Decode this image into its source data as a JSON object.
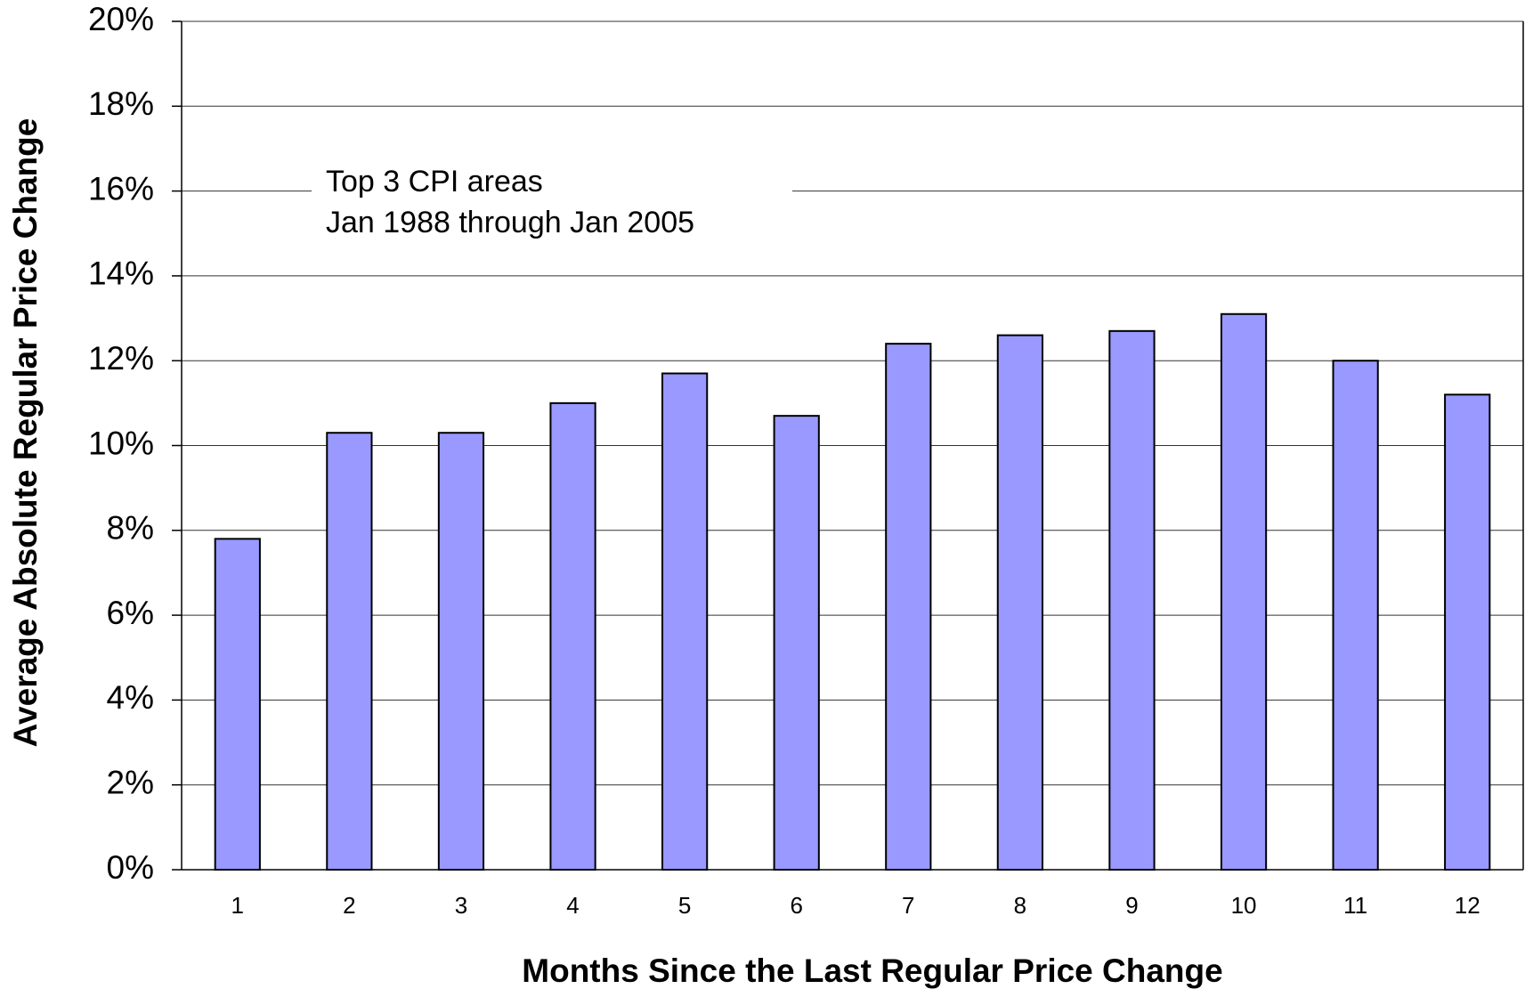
{
  "chart_data": {
    "type": "bar",
    "x_label": "Months Since the Last Regular Price Change",
    "y_label": "Average Absolute Regular Price Change",
    "annotation": [
      "Top 3 CPI areas",
      "Jan 1988 through Jan 2005"
    ],
    "categories": [
      "1",
      "2",
      "3",
      "4",
      "5",
      "6",
      "7",
      "8",
      "9",
      "10",
      "11",
      "12"
    ],
    "values": [
      7.8,
      10.3,
      10.3,
      11.0,
      11.7,
      10.7,
      12.4,
      12.6,
      12.7,
      13.1,
      12.0,
      11.2
    ],
    "color": "#9999ff",
    "ylim": [
      0,
      20
    ],
    "yticks": [
      {
        "value": 0,
        "label": "0%"
      },
      {
        "value": 2,
        "label": "2%"
      },
      {
        "value": 4,
        "label": "4%"
      },
      {
        "value": 6,
        "label": "6%"
      },
      {
        "value": 8,
        "label": "8%"
      },
      {
        "value": 10,
        "label": "10%"
      },
      {
        "value": 12,
        "label": "12%"
      },
      {
        "value": 14,
        "label": "14%"
      },
      {
        "value": 16,
        "label": "16%"
      },
      {
        "value": 18,
        "label": "18%"
      },
      {
        "value": 20,
        "label": "20%"
      }
    ],
    "grid": true
  }
}
